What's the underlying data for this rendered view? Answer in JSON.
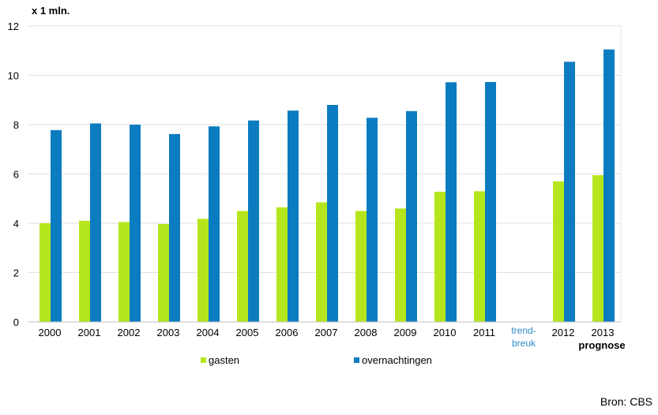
{
  "chart_data": {
    "type": "bar",
    "unit_label": "x 1 mln.",
    "categories": [
      "2000",
      "2001",
      "2002",
      "2003",
      "2004",
      "2005",
      "2006",
      "2007",
      "2008",
      "2009",
      "2010",
      "2011",
      "",
      "2012",
      "2013"
    ],
    "series": [
      {
        "name": "gasten",
        "color": "#b5e61d",
        "values": [
          4.0,
          4.1,
          4.05,
          3.97,
          4.18,
          4.5,
          4.65,
          4.85,
          4.5,
          4.6,
          5.28,
          5.3,
          null,
          5.7,
          5.95
        ]
      },
      {
        "name": "overnachtingen",
        "color": "#0c7cc1",
        "values": [
          7.78,
          8.05,
          8.0,
          7.62,
          7.93,
          8.17,
          8.57,
          8.8,
          8.28,
          8.55,
          9.72,
          9.73,
          null,
          10.55,
          11.05
        ]
      }
    ],
    "ylim": [
      0,
      12
    ],
    "yticks": [
      0,
      2,
      4,
      6,
      8,
      10,
      12
    ],
    "trend_break_label": [
      "trend-",
      "breuk"
    ],
    "forecast_label": "prognose",
    "legend_position": "bottom",
    "grid": true
  },
  "source": "Bron: CBS",
  "colors": {
    "grid": "#e2e2e2",
    "axis": "#bfbfbf",
    "trend_break": "#2e8bc9"
  }
}
